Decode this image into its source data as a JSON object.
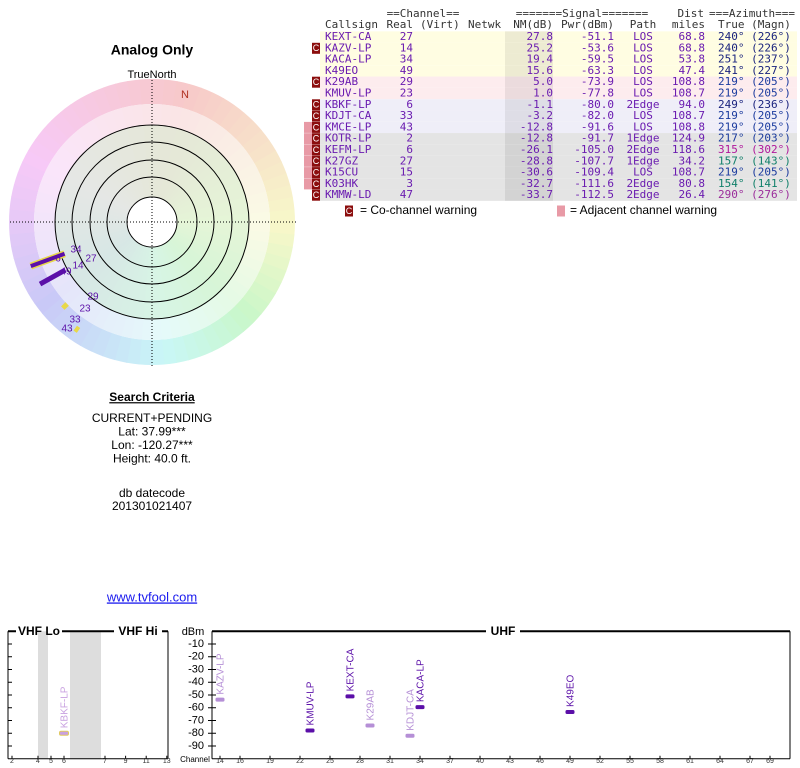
{
  "left": {
    "title": "Analog Only",
    "true_north": "TrueNorth",
    "north": "N",
    "polar_labels": [
      "34",
      "6",
      "27",
      "14",
      "49",
      "29",
      "23",
      "33",
      "43"
    ],
    "criteria_title": "Search Criteria",
    "criteria": [
      "CURRENT+PENDING",
      "Lat: 37.99***",
      "Lon: -120.27***",
      "Height: 40.0 ft."
    ],
    "db_label": "db datecode",
    "db_code": "201301021407",
    "link": "www.tvfool.com"
  },
  "table": {
    "group_headers": {
      "channel": "==Channel==",
      "signal": "=======Signal=======",
      "dist": "Dist",
      "azimuth": "===Azimuth==="
    },
    "headers": {
      "callsign": "Callsign",
      "real": "Real",
      "virt": "(Virt)",
      "netwk": "Netwk",
      "nm": "NM(dB)",
      "pwr": "Pwr(dBm)",
      "path": "Path",
      "dist": "miles",
      "azimuth": "True (Magn)"
    },
    "rows": [
      {
        "callsign": "KEXT-CA",
        "real": "27",
        "nm": "27.8",
        "pwr": "-51.1",
        "path": "LOS",
        "dist": "68.8",
        "azimuth": "240° (226°)",
        "co": false,
        "adj": false,
        "az_color": "#1a237e"
      },
      {
        "callsign": "KAZV-LP",
        "real": "14",
        "nm": "25.2",
        "pwr": "-53.6",
        "path": "LOS",
        "dist": "68.8",
        "azimuth": "240° (226°)",
        "co": true,
        "adj": false,
        "az_color": "#1a237e"
      },
      {
        "callsign": "KACA-LP",
        "real": "34",
        "nm": "19.4",
        "pwr": "-59.5",
        "path": "LOS",
        "dist": "53.8",
        "azimuth": "251° (237°)",
        "co": false,
        "adj": false,
        "az_color": "#1a237e"
      },
      {
        "callsign": "K49EO",
        "real": "49",
        "nm": "15.6",
        "pwr": "-63.3",
        "path": "LOS",
        "dist": "47.4",
        "azimuth": "241° (227°)",
        "co": false,
        "adj": false,
        "az_color": "#1a237e"
      },
      {
        "callsign": "K29AB",
        "real": "29",
        "nm": "5.0",
        "pwr": "-73.9",
        "path": "LOS",
        "dist": "108.8",
        "azimuth": "219° (205°)",
        "co": true,
        "adj": false,
        "az_color": "#1a3a9e"
      },
      {
        "callsign": "KMUV-LP",
        "real": "23",
        "nm": "1.0",
        "pwr": "-77.8",
        "path": "LOS",
        "dist": "108.7",
        "azimuth": "219° (205°)",
        "co": false,
        "adj": false,
        "az_color": "#1a3a9e"
      },
      {
        "callsign": "KBKF-LP",
        "real": "6",
        "nm": "-1.1",
        "pwr": "-80.0",
        "path": "2Edge",
        "dist": "94.0",
        "azimuth": "249° (236°)",
        "co": true,
        "adj": false,
        "az_color": "#1a237e"
      },
      {
        "callsign": "KDJT-CA",
        "real": "33",
        "nm": "-3.2",
        "pwr": "-82.0",
        "path": "LOS",
        "dist": "108.7",
        "azimuth": "219° (205°)",
        "co": true,
        "adj": false,
        "az_color": "#1a3a9e"
      },
      {
        "callsign": "KMCE-LP",
        "real": "43",
        "nm": "-12.8",
        "pwr": "-91.6",
        "path": "LOS",
        "dist": "108.8",
        "azimuth": "219° (205°)",
        "co": true,
        "adj": true,
        "az_color": "#1a3a9e"
      },
      {
        "callsign": "KOTR-LP",
        "real": "2",
        "nm": "-12.8",
        "pwr": "-91.7",
        "path": "1Edge",
        "dist": "124.9",
        "azimuth": "217° (203°)",
        "co": true,
        "adj": true,
        "az_color": "#1a3a9e"
      },
      {
        "callsign": "KEFM-LP",
        "real": "6",
        "nm": "-26.1",
        "pwr": "-105.0",
        "path": "2Edge",
        "dist": "118.6",
        "azimuth": "315° (302°)",
        "co": true,
        "adj": true,
        "az_color": "#b0179b"
      },
      {
        "callsign": "K27GZ",
        "real": "27",
        "nm": "-28.8",
        "pwr": "-107.7",
        "path": "1Edge",
        "dist": "34.2",
        "azimuth": "157° (143°)",
        "co": true,
        "adj": true,
        "az_color": "#11806a"
      },
      {
        "callsign": "K15CU",
        "real": "15",
        "nm": "-30.6",
        "pwr": "-109.4",
        "path": "LOS",
        "dist": "108.7",
        "azimuth": "219° (205°)",
        "co": true,
        "adj": true,
        "az_color": "#1a3a9e"
      },
      {
        "callsign": "K03HK",
        "real": "3",
        "nm": "-32.7",
        "pwr": "-111.6",
        "path": "2Edge",
        "dist": "80.8",
        "azimuth": "154° (141°)",
        "co": true,
        "adj": true,
        "az_color": "#11806a"
      },
      {
        "callsign": "KMMW-LD",
        "real": "47",
        "nm": "-33.7",
        "pwr": "-112.5",
        "path": "2Edge",
        "dist": "26.4",
        "azimuth": "290° (276°)",
        "co": true,
        "adj": false,
        "az_color": "#9b2d9b"
      }
    ]
  },
  "legend": {
    "co_icon": "C",
    "co_text": "= Co-channel warning",
    "adj_text": "= Adjacent channel warning"
  },
  "spectrum": {
    "y_label": "dBm",
    "x_label": "Channel",
    "bands": [
      "VHF Lo",
      "VHF Hi",
      "UHF"
    ],
    "ylim": [
      -100,
      0
    ],
    "yticks": [
      -10,
      -20,
      -30,
      -40,
      -50,
      -60,
      -70,
      -80,
      -90
    ],
    "vhf_ticks": [
      2,
      4,
      5,
      6,
      7,
      9,
      11,
      13
    ],
    "uhf_ticks": [
      14,
      16,
      19,
      22,
      25,
      28,
      31,
      34,
      37,
      40,
      43,
      46,
      49,
      52,
      55,
      58,
      61,
      64,
      67,
      69
    ],
    "stations": [
      {
        "name": "KAZV-LP",
        "channel": 14,
        "dbm": -53.6,
        "color": "#b58fd6"
      },
      {
        "name": "KMUV-LP",
        "channel": 23,
        "dbm": -77.8,
        "color": "#5b0fa8"
      },
      {
        "name": "KEXT-CA",
        "channel": 27,
        "dbm": -51.1,
        "color": "#5b0fa8"
      },
      {
        "name": "K29AB",
        "channel": 29,
        "dbm": -73.9,
        "color": "#b58fd6"
      },
      {
        "name": "KDJT-CA",
        "channel": 33,
        "dbm": -82.0,
        "color": "#b58fd6"
      },
      {
        "name": "KACA-LP",
        "channel": 34,
        "dbm": -59.5,
        "color": "#5b0fa8"
      },
      {
        "name": "K49EO",
        "channel": 49,
        "dbm": -63.3,
        "color": "#5b0fa8"
      },
      {
        "name": "KBKF-LP",
        "channel": 6,
        "dbm": -80.0,
        "color": "#c8a0e0"
      }
    ]
  }
}
